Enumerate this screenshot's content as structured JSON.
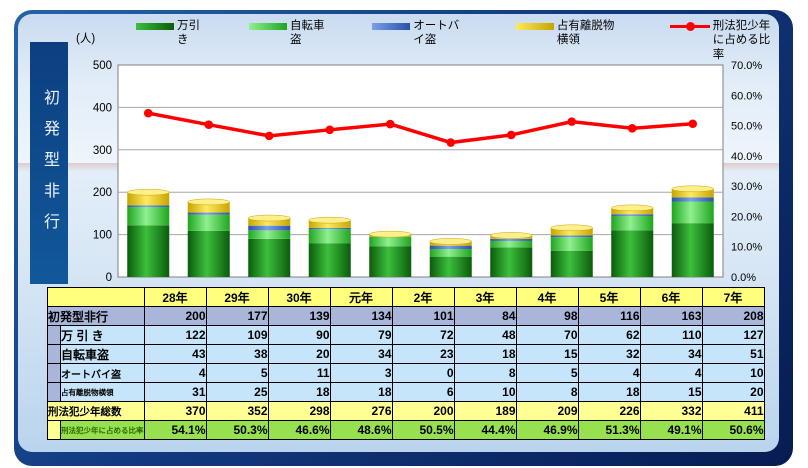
{
  "sidebar": {
    "title": "初発型非行"
  },
  "colors": {
    "frame_light": "#2563a8",
    "frame_dark": "#071c52",
    "sidebar_blue": "#0c3f80",
    "line_red": "#ff0000",
    "header_yellow": "#ffff7d",
    "row_periwinkle": "#a9b5d9",
    "row_lightblue": "#c6e5fb",
    "row_yellow": "#ffff94",
    "row_green": "#97e050"
  },
  "chart_data": {
    "type": "bar",
    "subtype": "stacked-bar-with-line",
    "categories": [
      "28年",
      "29年",
      "30年",
      "元年",
      "2年",
      "3年",
      "4年",
      "5年",
      "6年",
      "7年"
    ],
    "bar_series": [
      {
        "name": "万引き",
        "values": [
          122,
          109,
          90,
          79,
          72,
          48,
          70,
          62,
          110,
          127
        ],
        "color_dark": "#0b5c0b",
        "color_light": "#3cbf3c",
        "color_cap": "#4cc94c"
      },
      {
        "name": "自転車盗",
        "values": [
          43,
          38,
          20,
          34,
          23,
          18,
          15,
          32,
          34,
          51
        ],
        "color_dark": "#1fa51f",
        "color_light": "#90f090",
        "color_cap": "#a5f5a5"
      },
      {
        "name": "オートバイ盗",
        "values": [
          4,
          5,
          11,
          3,
          0,
          8,
          5,
          4,
          4,
          10
        ],
        "color_dark": "#2a52a8",
        "color_light": "#7aa0e8",
        "color_cap": "#8fb0ee"
      },
      {
        "name": "占有離脱物横領",
        "values": [
          31,
          25,
          18,
          18,
          6,
          10,
          8,
          18,
          15,
          20
        ],
        "color_dark": "#c7a500",
        "color_light": "#ffe95e",
        "color_cap": "#ffef8c"
      }
    ],
    "line_series": {
      "name": "刑法犯少年に占める比率",
      "values": [
        54.1,
        50.3,
        46.6,
        48.6,
        50.5,
        44.4,
        46.9,
        51.3,
        49.1,
        50.6
      ],
      "color": "#ff0000"
    },
    "left_axis": {
      "title": "(人)",
      "min": 0,
      "max": 500,
      "step": 100
    },
    "right_axis": {
      "min": 0,
      "max": 70,
      "step": 10,
      "suffix": "%",
      "decimals": 1
    },
    "grid": true,
    "legend_position": "top"
  },
  "table": {
    "corner": "",
    "columns": [
      "28年",
      "29年",
      "30年",
      "元年",
      "2年",
      "3年",
      "4年",
      "5年",
      "6年",
      "7年"
    ],
    "rows": [
      {
        "label": "初発型非行",
        "style": "blue",
        "indent": false,
        "values": [
          200,
          177,
          139,
          134,
          101,
          84,
          98,
          116,
          163,
          208
        ]
      },
      {
        "label": "万 引 き",
        "style": "sub",
        "indent": true,
        "values": [
          122,
          109,
          90,
          79,
          72,
          48,
          70,
          62,
          110,
          127
        ]
      },
      {
        "label": "自転車盗",
        "style": "sub",
        "indent": true,
        "values": [
          43,
          38,
          20,
          34,
          23,
          18,
          15,
          32,
          34,
          51
        ]
      },
      {
        "label": "オートバイ盗",
        "style": "sub small10",
        "indent": true,
        "values": [
          4,
          5,
          11,
          3,
          0,
          8,
          5,
          4,
          4,
          10
        ]
      },
      {
        "label": "占有離脱物横領",
        "style": "sub small8",
        "indent": true,
        "values": [
          31,
          25,
          18,
          18,
          6,
          10,
          8,
          18,
          15,
          20
        ]
      },
      {
        "label": "刑法犯少年総数",
        "style": "yellow",
        "indent": false,
        "values": [
          370,
          352,
          298,
          276,
          200,
          189,
          209,
          226,
          332,
          411
        ]
      },
      {
        "label": "刑法犯少年に占める比率",
        "style": "ratio",
        "indent": true,
        "values": [
          "54.1%",
          "50.3%",
          "46.6%",
          "48.6%",
          "50.5%",
          "44.4%",
          "46.9%",
          "51.3%",
          "49.1%",
          "50.6%"
        ]
      }
    ]
  }
}
